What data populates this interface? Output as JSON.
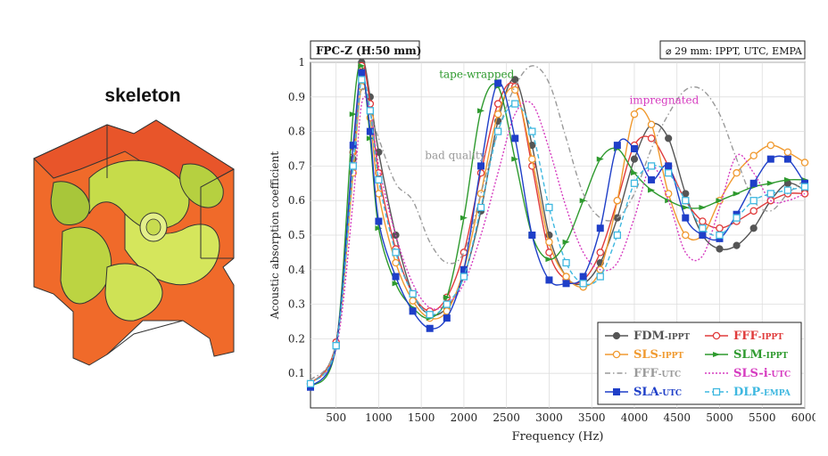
{
  "figure": {
    "left_label": "skeleton"
  },
  "chart_data": {
    "type": "line",
    "title_left": "FPC-Z (H:50 mm)",
    "title_right": "⌀ 29 mm: IPPT, UTC, EMPA",
    "xlabel": "Frequency (Hz)",
    "ylabel": "Acoustic absorption coefficient",
    "xlim": [
      200,
      6000
    ],
    "ylim": [
      0,
      1
    ],
    "xticks": [
      500,
      1000,
      1500,
      2000,
      2500,
      3000,
      3500,
      4000,
      4500,
      5000,
      5500,
      6000
    ],
    "yticks": [
      0.1,
      0.2,
      0.3,
      0.4,
      0.5,
      0.6,
      0.7,
      0.8,
      0.9,
      1
    ],
    "grid": true,
    "legend_position": "bottom-right",
    "annotations": [
      {
        "text": "tape-wrapped",
        "x": 2150,
        "y": 0.955,
        "color": "#2e9a2e"
      },
      {
        "text": "impregnated",
        "x": 4350,
        "y": 0.88,
        "color": "#d63cc0"
      },
      {
        "text": "bad quality",
        "x": 1900,
        "y": 0.72,
        "color": "#999999"
      }
    ],
    "series": [
      {
        "name": "FDM",
        "sub": "-IPPT",
        "color": "#555555",
        "dash": "",
        "marker": "circle-filled",
        "x": [
          200,
          500,
          700,
          800,
          900,
          1000,
          1200,
          1400,
          1600,
          1800,
          2000,
          2200,
          2400,
          2600,
          2800,
          3000,
          3200,
          3400,
          3600,
          3800,
          4000,
          4200,
          4400,
          4600,
          4800,
          5000,
          5200,
          5400,
          5600,
          5800,
          6000
        ],
        "y": [
          0.07,
          0.19,
          0.72,
          1.0,
          0.9,
          0.74,
          0.5,
          0.33,
          0.27,
          0.29,
          0.38,
          0.57,
          0.83,
          0.95,
          0.76,
          0.5,
          0.38,
          0.36,
          0.42,
          0.55,
          0.72,
          0.82,
          0.78,
          0.62,
          0.5,
          0.46,
          0.47,
          0.52,
          0.6,
          0.65,
          0.63
        ]
      },
      {
        "name": "FFF",
        "sub": "-IPPT",
        "color": "#e03c3c",
        "dash": "",
        "marker": "circle-open",
        "x": [
          200,
          500,
          700,
          800,
          900,
          1000,
          1200,
          1400,
          1600,
          1800,
          2000,
          2200,
          2400,
          2600,
          2800,
          3000,
          3200,
          3400,
          3600,
          3800,
          4000,
          4200,
          4400,
          4600,
          4800,
          5000,
          5200,
          5400,
          5600,
          5800,
          6000
        ],
        "y": [
          0.07,
          0.19,
          0.74,
          0.99,
          0.88,
          0.68,
          0.46,
          0.33,
          0.28,
          0.32,
          0.45,
          0.68,
          0.88,
          0.93,
          0.7,
          0.45,
          0.37,
          0.37,
          0.45,
          0.6,
          0.76,
          0.78,
          0.7,
          0.6,
          0.54,
          0.52,
          0.54,
          0.57,
          0.6,
          0.62,
          0.62
        ]
      },
      {
        "name": "SLS",
        "sub": "-IPPT",
        "color": "#f09a30",
        "dash": "",
        "marker": "circle-open",
        "x": [
          200,
          500,
          700,
          800,
          900,
          1000,
          1200,
          1400,
          1600,
          1800,
          2000,
          2200,
          2400,
          2600,
          2800,
          3000,
          3200,
          3400,
          3600,
          3800,
          4000,
          4200,
          4400,
          4600,
          4800,
          5000,
          5200,
          5400,
          5600,
          5800,
          6000
        ],
        "y": [
          0.07,
          0.18,
          0.68,
          0.93,
          0.84,
          0.62,
          0.42,
          0.31,
          0.26,
          0.28,
          0.4,
          0.62,
          0.85,
          0.92,
          0.72,
          0.48,
          0.38,
          0.35,
          0.4,
          0.6,
          0.85,
          0.82,
          0.62,
          0.5,
          0.5,
          0.6,
          0.68,
          0.73,
          0.76,
          0.74,
          0.71
        ]
      },
      {
        "name": "SLM",
        "sub": "-IPPT",
        "color": "#2e9a2e",
        "dash": "",
        "marker": "arrow",
        "x": [
          200,
          500,
          700,
          800,
          900,
          1000,
          1200,
          1400,
          1600,
          1800,
          2000,
          2200,
          2400,
          2600,
          2800,
          3000,
          3200,
          3400,
          3600,
          3800,
          4000,
          4200,
          4400,
          4600,
          4800,
          5000,
          5200,
          5400,
          5600,
          5800,
          6000
        ],
        "y": [
          0.06,
          0.18,
          0.85,
          0.99,
          0.78,
          0.52,
          0.36,
          0.29,
          0.26,
          0.32,
          0.55,
          0.86,
          0.93,
          0.72,
          0.5,
          0.43,
          0.48,
          0.6,
          0.72,
          0.75,
          0.68,
          0.63,
          0.6,
          0.58,
          0.58,
          0.6,
          0.62,
          0.64,
          0.65,
          0.66,
          0.66
        ]
      },
      {
        "name": "FFF",
        "sub": "-UTC",
        "color": "#9a9a9a",
        "dash": "6,3,1.5,3",
        "marker": "none",
        "x": [
          200,
          500,
          700,
          800,
          900,
          1000,
          1200,
          1400,
          1600,
          1800,
          2000,
          2200,
          2400,
          2600,
          2800,
          3000,
          3200,
          3400,
          3600,
          3800,
          4000,
          4200,
          4400,
          4600,
          4800,
          5000,
          5200,
          5400,
          5600,
          5800,
          6000
        ],
        "y": [
          0.08,
          0.19,
          0.72,
          0.92,
          0.85,
          0.78,
          0.65,
          0.6,
          0.48,
          0.42,
          0.45,
          0.62,
          0.8,
          0.93,
          0.99,
          0.94,
          0.78,
          0.62,
          0.55,
          0.55,
          0.62,
          0.75,
          0.85,
          0.92,
          0.92,
          0.85,
          0.72,
          0.6,
          0.57,
          0.62,
          0.66
        ]
      },
      {
        "name": "SLS-i",
        "sub": "-UTC",
        "color": "#d63cc0",
        "dash": "2,2",
        "marker": "none",
        "x": [
          200,
          500,
          700,
          800,
          900,
          1000,
          1200,
          1400,
          1600,
          1800,
          2000,
          2200,
          2400,
          2600,
          2800,
          3000,
          3200,
          3400,
          3600,
          3800,
          4000,
          4200,
          4400,
          4600,
          4800,
          5000,
          5200,
          5400,
          5600,
          5800,
          6000
        ],
        "y": [
          0.07,
          0.17,
          0.6,
          0.88,
          0.86,
          0.7,
          0.5,
          0.36,
          0.29,
          0.3,
          0.36,
          0.5,
          0.68,
          0.85,
          0.88,
          0.75,
          0.58,
          0.45,
          0.4,
          0.42,
          0.55,
          0.7,
          0.6,
          0.45,
          0.44,
          0.58,
          0.73,
          0.68,
          0.6,
          0.6,
          0.62
        ]
      },
      {
        "name": "SLA",
        "sub": "-UTC",
        "color": "#1f3fc8",
        "dash": "",
        "marker": "square-filled",
        "x": [
          200,
          500,
          700,
          800,
          900,
          1000,
          1200,
          1400,
          1600,
          1800,
          2000,
          2200,
          2400,
          2600,
          2800,
          3000,
          3200,
          3400,
          3600,
          3800,
          4000,
          4200,
          4400,
          4600,
          4800,
          5000,
          5200,
          5400,
          5600,
          5800,
          6000
        ],
        "y": [
          0.06,
          0.18,
          0.76,
          0.97,
          0.8,
          0.54,
          0.38,
          0.28,
          0.23,
          0.26,
          0.4,
          0.7,
          0.94,
          0.78,
          0.5,
          0.37,
          0.36,
          0.38,
          0.52,
          0.76,
          0.75,
          0.66,
          0.7,
          0.55,
          0.5,
          0.49,
          0.56,
          0.65,
          0.72,
          0.72,
          0.65
        ]
      },
      {
        "name": "DLP",
        "sub": "-EMPA",
        "color": "#3fb8e0",
        "dash": "5,3",
        "marker": "square-open",
        "x": [
          200,
          500,
          700,
          800,
          900,
          1000,
          1200,
          1400,
          1600,
          1800,
          2000,
          2200,
          2400,
          2600,
          2800,
          3000,
          3200,
          3400,
          3600,
          3800,
          4000,
          4200,
          4400,
          4600,
          4800,
          5000,
          5200,
          5400,
          5600,
          5800,
          6000
        ],
        "y": [
          0.07,
          0.18,
          0.7,
          0.95,
          0.86,
          0.66,
          0.45,
          0.33,
          0.27,
          0.3,
          0.38,
          0.58,
          0.8,
          0.88,
          0.8,
          0.58,
          0.42,
          0.36,
          0.38,
          0.5,
          0.65,
          0.7,
          0.68,
          0.6,
          0.52,
          0.5,
          0.55,
          0.6,
          0.62,
          0.63,
          0.64
        ]
      }
    ]
  }
}
